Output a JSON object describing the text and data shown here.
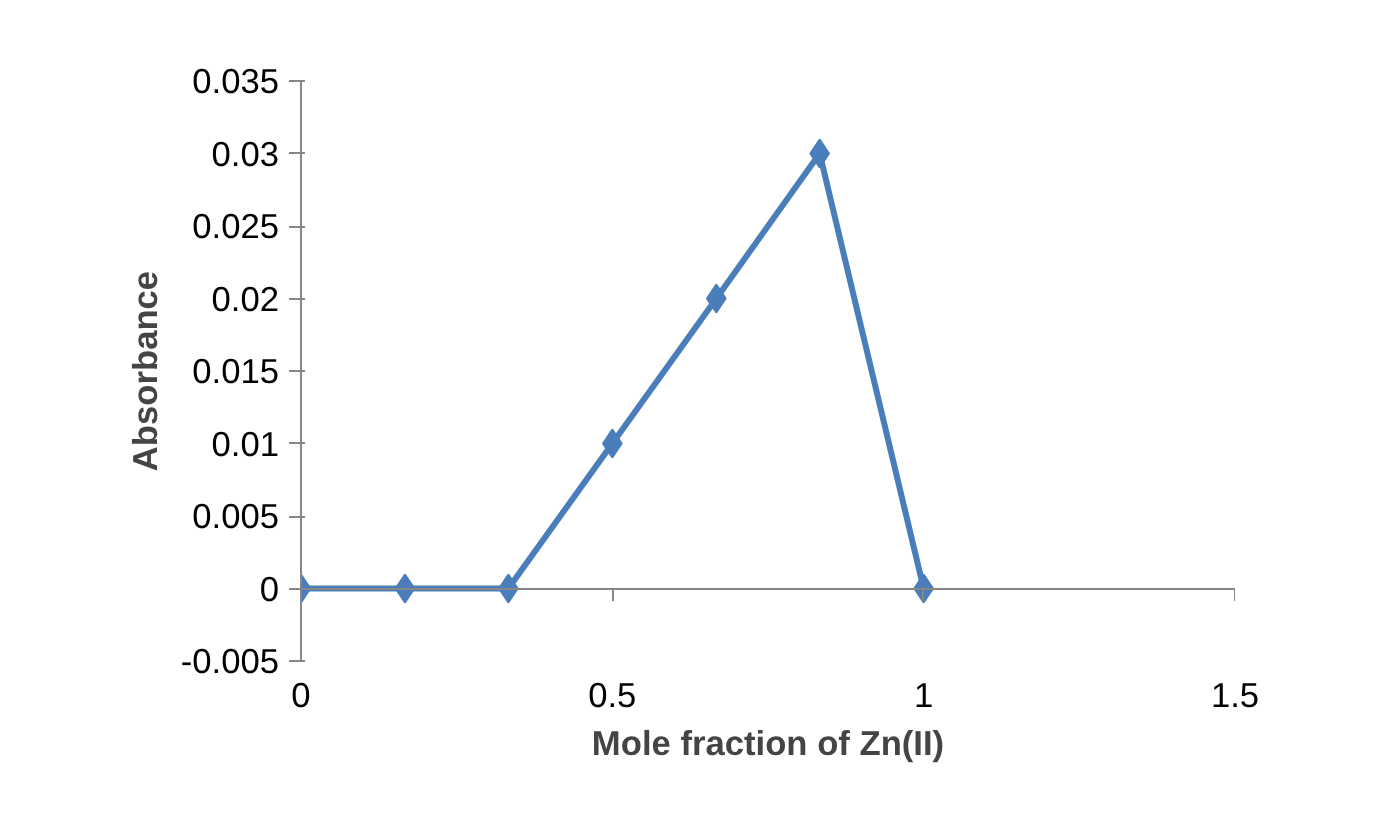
{
  "chart_data": {
    "type": "line",
    "xlabel": "Mole fraction of Zn(II)",
    "ylabel": "Absorbance",
    "x": [
      0,
      0.167,
      0.333,
      0.5,
      0.667,
      0.833,
      1
    ],
    "series": [
      {
        "color": "#4a7ebb",
        "values": [
          0,
          0,
          0,
          0.01,
          0.02,
          0.03,
          0
        ]
      }
    ],
    "xlim": [
      0,
      1.5
    ],
    "xticks": [
      0,
      0.5,
      1,
      1.5
    ],
    "ylim": [
      -0.005,
      0.035
    ],
    "yticks": [
      -0.005,
      0,
      0.005,
      0.01,
      0.015,
      0.02,
      0.025,
      0.03,
      0.035
    ],
    "marker": "diamond",
    "line_style": "solid",
    "grid": false
  }
}
